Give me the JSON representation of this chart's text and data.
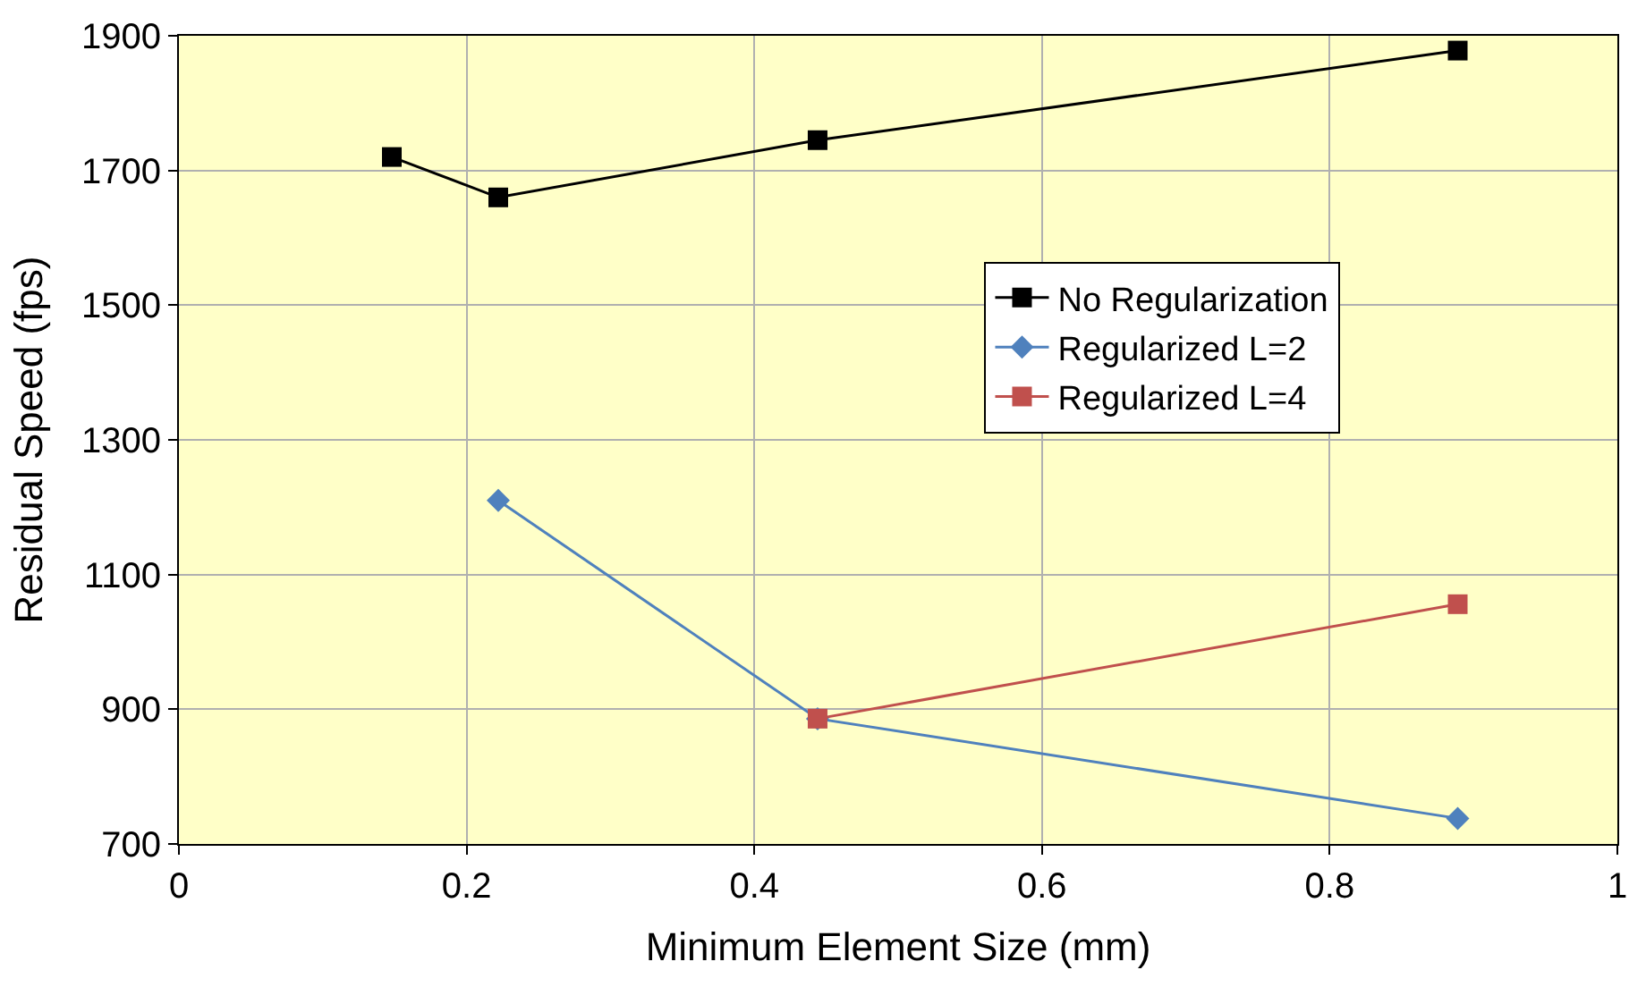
{
  "chart_data": {
    "type": "line",
    "xlabel": "Minimum Element Size (mm)",
    "ylabel": "Residual Speed (fps)",
    "xlim": [
      0,
      1
    ],
    "xticks": [
      0,
      0.2,
      0.4,
      0.6,
      0.8,
      1
    ],
    "ylim": [
      700,
      1900
    ],
    "yticks": [
      700,
      900,
      1100,
      1300,
      1500,
      1700,
      1900
    ],
    "grid": true,
    "legend": "right",
    "series": [
      {
        "name": "No Regularization",
        "color": "#000000",
        "marker": "square",
        "x": [
          0.148,
          0.222,
          0.444,
          0.889
        ],
        "values": [
          1720,
          1660,
          1745,
          1878
        ]
      },
      {
        "name": "Regularized L=2",
        "color": "#4f81bd",
        "marker": "diamond",
        "x": [
          0.222,
          0.444,
          0.889
        ],
        "values": [
          1210,
          886,
          738
        ]
      },
      {
        "name": "Regularized L=4",
        "color": "#c0504d",
        "marker": "square",
        "x": [
          0.444,
          0.889
        ],
        "values": [
          886,
          1056
        ]
      }
    ]
  }
}
